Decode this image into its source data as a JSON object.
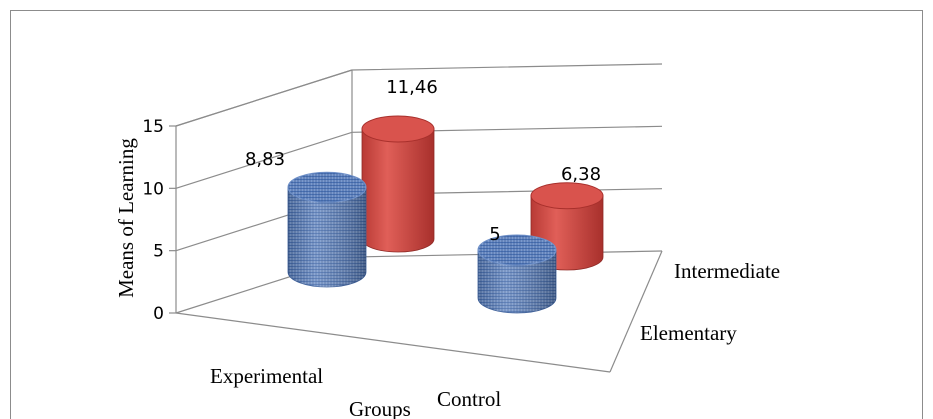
{
  "chart_data": {
    "type": "bar",
    "style": "3d-cylinder",
    "ylabel": "Means of Learning",
    "xlabel": "Groups",
    "categories": [
      "Experimental",
      "Control"
    ],
    "series": [
      {
        "name": "Elementary",
        "values": [
          8.83,
          5
        ],
        "labels": [
          "8,83",
          "5"
        ],
        "color": "#4f81bd"
      },
      {
        "name": "Intermediate",
        "values": [
          11.46,
          6.38
        ],
        "labels": [
          "11,46",
          "6,38"
        ],
        "color": "#c0504d"
      }
    ],
    "yticks": [
      "0",
      "5",
      "10",
      "15"
    ],
    "ylim": [
      0,
      15
    ],
    "grid": true
  }
}
